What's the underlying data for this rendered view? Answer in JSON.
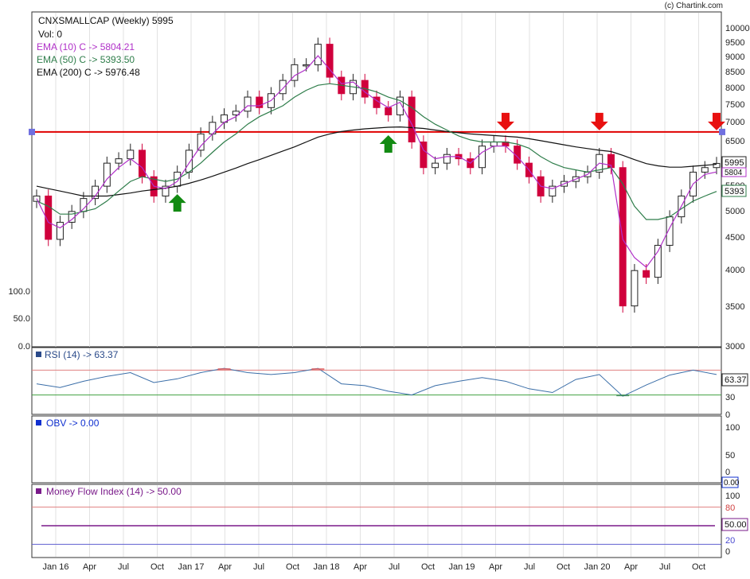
{
  "credit": "(c) Chartink.com",
  "main": {
    "title": "CNXSMALLCAP (Weekly) 5995",
    "vol": "Vol: 0",
    "ema10_label": "EMA (10) C -> 5804.21",
    "ema50_label": "EMA (50) C -> 5393.50",
    "ema200_label": "EMA (200) C -> 5976.48",
    "price_ticks": [
      "10000",
      "9500",
      "9000",
      "8500",
      "8000",
      "7500",
      "7000",
      "6500",
      "6000",
      "5500",
      "5000",
      "4500",
      "4000",
      "3500",
      "3000"
    ],
    "vol_ticks": [
      "100.0",
      "50.0",
      "0.0"
    ],
    "price_box": "5995",
    "ema10_box": "5804",
    "ema50_box": "5393"
  },
  "rsi": {
    "label": "RSI (14) -> 63.37",
    "box": "63.37",
    "ticks": [
      "70",
      "30",
      "0"
    ]
  },
  "obv": {
    "label": "OBV -> 0.00",
    "box": "0.00",
    "ticks": [
      "100",
      "50",
      "0"
    ]
  },
  "mfi": {
    "label": "Money Flow Index (14) -> 50.00",
    "box": "50.00",
    "ticks": [
      "100",
      "80",
      "50",
      "20",
      "0"
    ]
  },
  "x_ticks": [
    "Jan 16",
    "Apr",
    "Jul",
    "Oct",
    "Jan 17",
    "Apr",
    "Jul",
    "Oct",
    "Jan 18",
    "Apr",
    "Jul",
    "Oct",
    "Jan 19",
    "Apr",
    "Jul",
    "Oct",
    "Jan 20",
    "Apr",
    "Jul",
    "Oct"
  ],
  "colors": {
    "ema10": "#b030c8",
    "ema50": "#2e7d4a",
    "ema200": "#111111",
    "up_candle": "#222222",
    "down_candle": "#d0003c",
    "resistance": "#e00000",
    "rsi_line": "#3a6ea8",
    "buy_arrow": "#128a12",
    "sell_arrow": "#e81010",
    "mfi_line": "#7a1a8a"
  },
  "chart_data": [
    {
      "type": "candlestick",
      "title": "CNXSMALLCAP (Weekly) 5995",
      "x": [
        "Jan 2016",
        "Feb 2016",
        "Mar 2016",
        "Apr 2016",
        "May 2016",
        "Jun 2016",
        "Jul 2016",
        "Aug 2016",
        "Sep 2016",
        "Oct 2016",
        "Nov 2016",
        "Dec 2016",
        "Jan 2017",
        "Feb 2017",
        "Mar 2017",
        "Apr 2017",
        "May 2017",
        "Jun 2017",
        "Jul 2017",
        "Aug 2017",
        "Sep 2017",
        "Oct 2017",
        "Nov 2017",
        "Dec 2017",
        "Jan 2018",
        "Feb 2018",
        "Mar 2018",
        "Apr 2018",
        "May 2018",
        "Jun 2018",
        "Jul 2018",
        "Aug 2018",
        "Sep 2018",
        "Oct 2018",
        "Nov 2018",
        "Dec 2018",
        "Jan 2019",
        "Feb 2019",
        "Mar 2019",
        "Apr 2019",
        "May 2019",
        "Jun 2019",
        "Jul 2019",
        "Aug 2019",
        "Sep 2019",
        "Oct 2019",
        "Nov 2019",
        "Dec 2019",
        "Jan 2020",
        "Feb 2020",
        "Mar 2020",
        "Apr 2020",
        "May 2020",
        "Jun 2020",
        "Jul 2020",
        "Aug 2020",
        "Sep 2020",
        "Oct 2020",
        "Nov 2020"
      ],
      "close": [
        5300,
        4500,
        4800,
        5000,
        5250,
        5500,
        6000,
        6100,
        6300,
        5700,
        5300,
        5500,
        5800,
        6300,
        6700,
        7000,
        7200,
        7300,
        7700,
        7400,
        7800,
        8200,
        8700,
        8700,
        9400,
        8300,
        7800,
        8200,
        7700,
        7400,
        7200,
        7700,
        6500,
        5900,
        6000,
        6200,
        6100,
        5900,
        6400,
        6500,
        6400,
        6000,
        5700,
        5300,
        5500,
        5600,
        5700,
        5800,
        6200,
        5900,
        3500,
        4000,
        3900,
        4400,
        4900,
        5300,
        5800,
        5900,
        5995
      ],
      "ema10": [
        5250,
        4800,
        4700,
        4850,
        5050,
        5300,
        5650,
        5900,
        6100,
        5900,
        5500,
        5450,
        5600,
        6000,
        6400,
        6700,
        7000,
        7150,
        7450,
        7450,
        7600,
        7950,
        8350,
        8550,
        9000,
        8550,
        8100,
        8150,
        7850,
        7600,
        7400,
        7550,
        6950,
        6300,
        6100,
        6150,
        6150,
        6000,
        6250,
        6400,
        6400,
        6150,
        5850,
        5500,
        5450,
        5550,
        5650,
        5750,
        6000,
        5950,
        4500,
        4200,
        4050,
        4300,
        4700,
        5100,
        5550,
        5750,
        5804
      ],
      "ema50": [
        5200,
        5100,
        4950,
        4950,
        5000,
        5050,
        5200,
        5400,
        5600,
        5700,
        5650,
        5600,
        5650,
        5800,
        6000,
        6250,
        6500,
        6700,
        6950,
        7150,
        7300,
        7450,
        7700,
        7900,
        8050,
        8100,
        8050,
        8000,
        7950,
        7850,
        7700,
        7600,
        7400,
        7150,
        6950,
        6800,
        6650,
        6550,
        6500,
        6500,
        6500,
        6450,
        6350,
        6150,
        6000,
        5900,
        5850,
        5800,
        5850,
        5900,
        5550,
        5100,
        4850,
        4850,
        4900,
        5050,
        5200,
        5300,
        5393
      ],
      "ema200": [
        5500,
        5450,
        5400,
        5350,
        5300,
        5300,
        5300,
        5330,
        5360,
        5400,
        5430,
        5460,
        5500,
        5560,
        5630,
        5710,
        5800,
        5890,
        5990,
        6080,
        6180,
        6280,
        6380,
        6500,
        6620,
        6700,
        6760,
        6800,
        6830,
        6850,
        6870,
        6880,
        6860,
        6840,
        6800,
        6760,
        6730,
        6700,
        6680,
        6660,
        6640,
        6620,
        6580,
        6530,
        6480,
        6430,
        6380,
        6340,
        6300,
        6270,
        6180,
        6080,
        5990,
        5940,
        5910,
        5910,
        5930,
        5950,
        5976
      ],
      "resistance": 6750,
      "buy_signals": [
        "Jan 2017",
        "Jul 2018"
      ],
      "sell_signals": [
        "May 2019",
        "Jan 2020",
        "Nov 2020"
      ],
      "ylim": [
        3000,
        10000
      ],
      "scale": "log"
    },
    {
      "type": "line",
      "title": "RSI (14) -> 63.37",
      "x": [
        "Jan 2016",
        "Mar 2016",
        "May 2016",
        "Jul 2016",
        "Sep 2016",
        "Nov 2016",
        "Jan 2017",
        "Mar 2017",
        "May 2017",
        "Jul 2017",
        "Sep 2017",
        "Nov 2017",
        "Jan 2018",
        "Mar 2018",
        "May 2018",
        "Jul 2018",
        "Sep 2018",
        "Nov 2018",
        "Jan 2019",
        "Mar 2019",
        "May 2019",
        "Jul 2019",
        "Sep 2019",
        "Nov 2019",
        "Jan 2020",
        "Mar 2020",
        "May 2020",
        "Jul 2020",
        "Sep 2020",
        "Nov 2020"
      ],
      "values": [
        48,
        42,
        52,
        60,
        66,
        50,
        56,
        66,
        73,
        66,
        63,
        66,
        73,
        48,
        45,
        36,
        30,
        45,
        52,
        58,
        52,
        40,
        34,
        55,
        63,
        28,
        46,
        62,
        70,
        63
      ],
      "hlines": [
        70,
        30
      ],
      "ylim": [
        0,
        100
      ]
    },
    {
      "type": "line",
      "title": "OBV -> 0.00",
      "values": [
        0
      ],
      "ylim": [
        0,
        100
      ]
    },
    {
      "type": "line",
      "title": "Money Flow Index (14) -> 50.00",
      "values": [
        50
      ],
      "hlines": [
        80,
        20
      ],
      "ylim": [
        0,
        100
      ]
    }
  ]
}
